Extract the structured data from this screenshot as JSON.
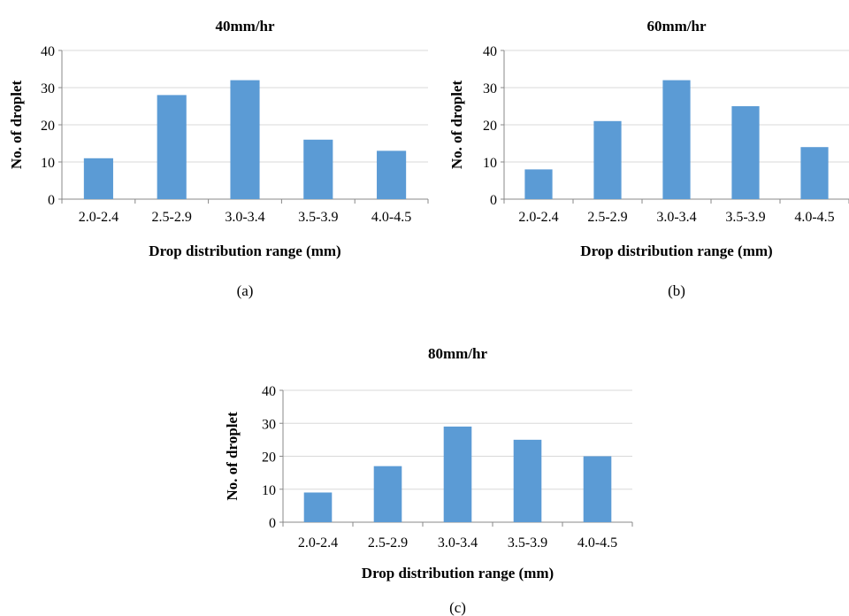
{
  "chart_data": [
    {
      "type": "bar",
      "title": "40mm/hr",
      "xlabel": "Drop distribution range (mm)",
      "ylabel": "No. of droplet",
      "caption": "(a)",
      "categories": [
        "2.0-2.4",
        "2.5-2.9",
        "3.0-3.4",
        "3.5-3.9",
        "4.0-4.5"
      ],
      "values": [
        11,
        28,
        32,
        16,
        13
      ],
      "ylim": [
        0,
        40
      ],
      "yticks": [
        0,
        10,
        20,
        30,
        40
      ],
      "grid": true,
      "bar_color": "#5b9bd5"
    },
    {
      "type": "bar",
      "title": "60mm/hr",
      "xlabel": "Drop distribution range (mm)",
      "ylabel": "No. of droplet",
      "caption": "(b)",
      "categories": [
        "2.0-2.4",
        "2.5-2.9",
        "3.0-3.4",
        "3.5-3.9",
        "4.0-4.5"
      ],
      "values": [
        8,
        21,
        32,
        25,
        14
      ],
      "ylim": [
        0,
        40
      ],
      "yticks": [
        0,
        10,
        20,
        30,
        40
      ],
      "grid": true,
      "bar_color": "#5b9bd5"
    },
    {
      "type": "bar",
      "title": "80mm/hr",
      "xlabel": "Drop distribution range (mm)",
      "ylabel": "No. of droplet",
      "caption": "(c)",
      "categories": [
        "2.0-2.4",
        "2.5-2.9",
        "3.0-3.4",
        "3.5-3.9",
        "4.0-4.5"
      ],
      "values": [
        9,
        17,
        29,
        25,
        20
      ],
      "ylim": [
        0,
        40
      ],
      "yticks": [
        0,
        10,
        20,
        30,
        40
      ],
      "grid": true,
      "bar_color": "#5b9bd5"
    }
  ]
}
